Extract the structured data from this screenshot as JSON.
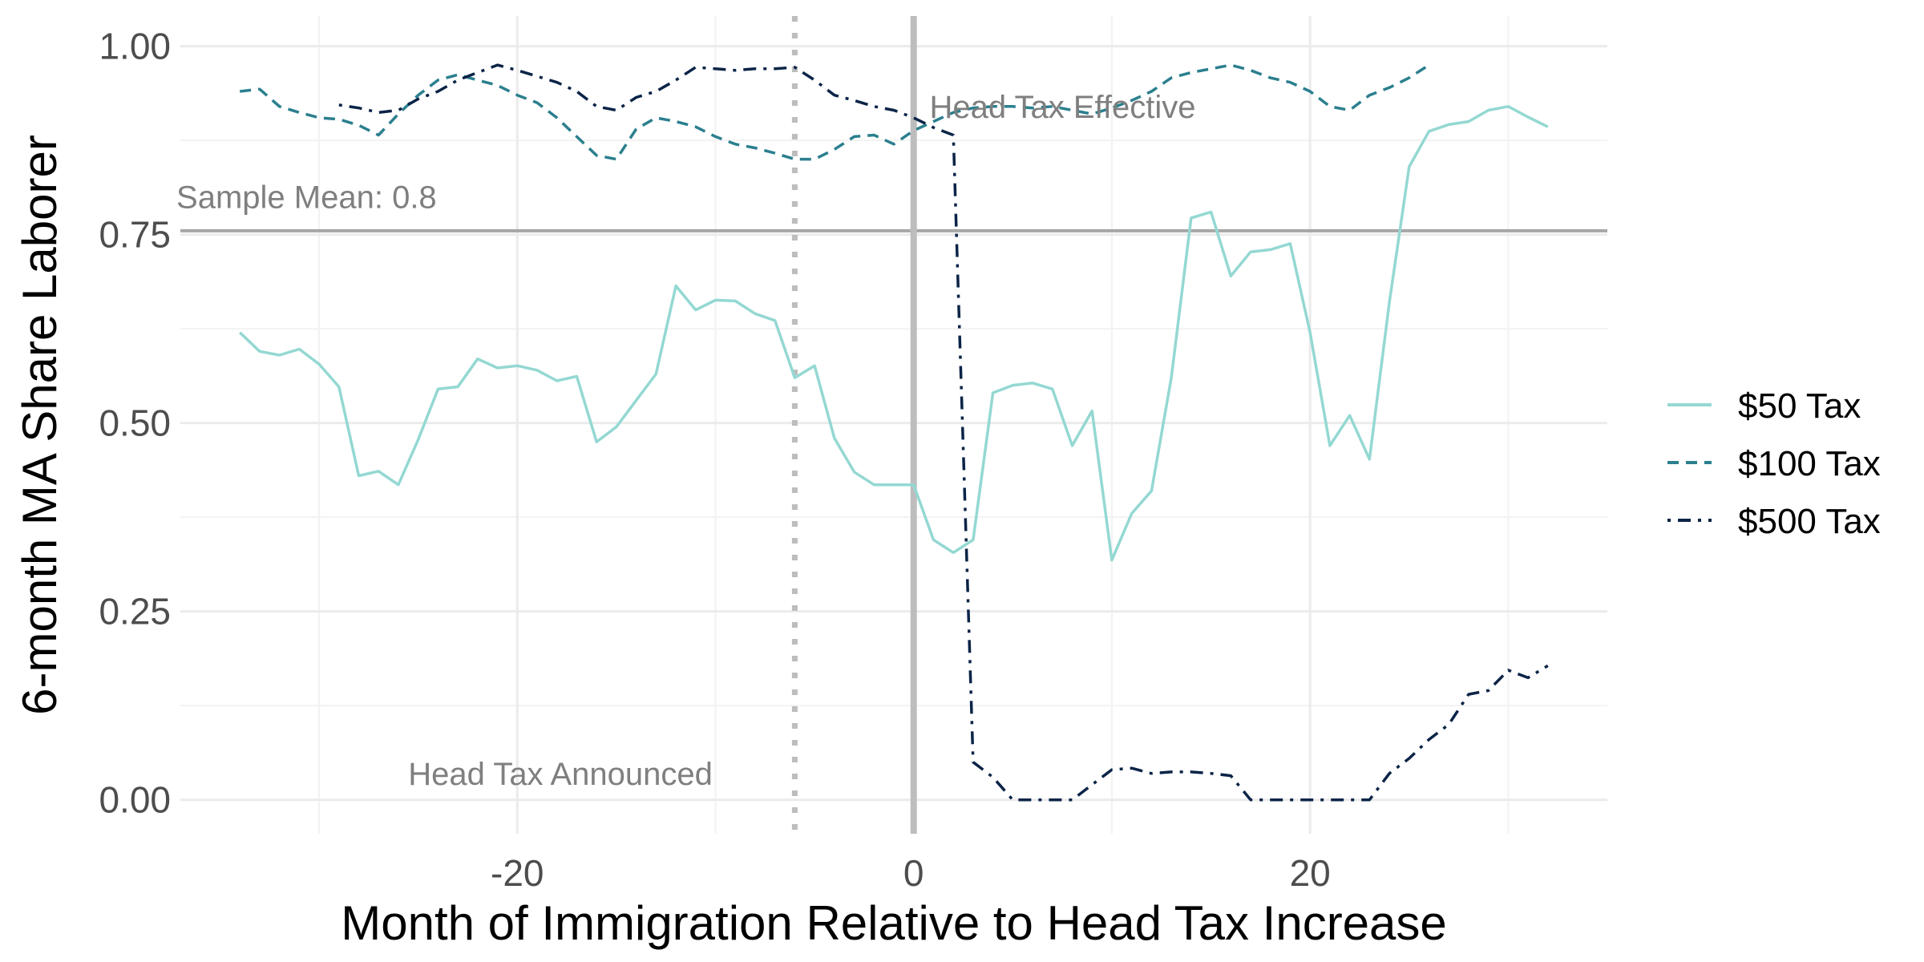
{
  "chart_data": {
    "type": "line",
    "title": "",
    "xlabel": "Month of Immigration Relative to Head Tax Increase",
    "ylabel": "6-month MA Share Laborer",
    "xlim": [
      -37,
      35
    ],
    "ylim": [
      -0.045,
      1.04
    ],
    "x_ticks": [
      -20,
      0,
      20
    ],
    "x_tick_labels": [
      "-20",
      "0",
      "20"
    ],
    "y_ticks": [
      0,
      0.25,
      0.5,
      0.75,
      1.0
    ],
    "y_tick_labels": [
      "0.00",
      "0.25",
      "0.50",
      "0.75",
      "1.00"
    ],
    "grid": true,
    "legend_position": "right",
    "reference_lines": {
      "vertical_solid": {
        "x": 0,
        "color": "#bdbdbd"
      },
      "vertical_dotted": {
        "x": -6,
        "color": "#bdbdbd"
      },
      "horizontal": {
        "y": 0.755,
        "color": "#a6a6a6"
      }
    },
    "annotations": {
      "effective": {
        "text": "Head Tax Effective",
        "x": 0.8,
        "y": 0.92
      },
      "mean": {
        "text": "Sample Mean: 0.8",
        "x": -37.2,
        "y": 0.8
      },
      "announced": {
        "text": "Head Tax Announced",
        "x": -25.5,
        "y": 0.035
      }
    },
    "series": [
      {
        "name": "$50 Tax",
        "color": "#94d8d2",
        "dash": "solid",
        "x": [
          -34,
          -33,
          -32,
          -31,
          -30,
          -29,
          -28,
          -27,
          -26,
          -25,
          -24,
          -23,
          -22,
          -21,
          -20,
          -19,
          -18,
          -17,
          -16,
          -15,
          -14,
          -13,
          -12,
          -11,
          -10,
          -9,
          -8,
          -7,
          -6,
          -5,
          -4,
          -3,
          -2,
          -1,
          0,
          1,
          2,
          3,
          4,
          5,
          6,
          7,
          8,
          9,
          10,
          11,
          12,
          13,
          14,
          15,
          16,
          17,
          18,
          19,
          20,
          21,
          22,
          23,
          24,
          25,
          26,
          27,
          28,
          29,
          30,
          31,
          32
        ],
        "values": [
          0.62,
          0.595,
          0.59,
          0.598,
          0.578,
          0.548,
          0.43,
          0.436,
          0.418,
          0.478,
          0.545,
          0.548,
          0.585,
          0.573,
          0.576,
          0.57,
          0.556,
          0.562,
          0.475,
          0.495,
          0.53,
          0.565,
          0.682,
          0.65,
          0.663,
          0.662,
          0.645,
          0.636,
          0.56,
          0.576,
          0.48,
          0.435,
          0.418,
          0.418,
          0.418,
          0.345,
          0.328,
          0.345,
          0.54,
          0.55,
          0.553,
          0.545,
          0.47,
          0.516,
          0.318,
          0.38,
          0.41,
          0.56,
          0.772,
          0.78,
          0.695,
          0.727,
          0.73,
          0.738,
          0.62,
          0.47,
          0.51,
          0.452,
          0.66,
          0.84,
          0.887,
          0.896,
          0.9,
          0.915,
          0.92,
          0.906,
          0.893
        ]
      },
      {
        "name": "$100 Tax",
        "color": "#2b7f8e",
        "dash": "dashed",
        "x": [
          -34,
          -33,
          -32,
          -31,
          -30,
          -29,
          -28,
          -27,
          -26,
          -25,
          -24,
          -23,
          -22,
          -21,
          -20,
          -19,
          -18,
          -17,
          -16,
          -15,
          -14,
          -13,
          -12,
          -11,
          -10,
          -9,
          -8,
          -7,
          -6,
          -5,
          -4,
          -3,
          -2,
          -1,
          0,
          1,
          2,
          3,
          4,
          5,
          6,
          7,
          8,
          9,
          10,
          11,
          12,
          13,
          14,
          15,
          16,
          17,
          18,
          19,
          20,
          21,
          22,
          23,
          24,
          25,
          26
        ],
        "values": [
          0.94,
          0.943,
          0.92,
          0.912,
          0.905,
          0.903,
          0.895,
          0.882,
          0.91,
          0.935,
          0.955,
          0.962,
          0.955,
          0.948,
          0.935,
          0.925,
          0.905,
          0.88,
          0.855,
          0.85,
          0.89,
          0.905,
          0.9,
          0.893,
          0.88,
          0.87,
          0.865,
          0.858,
          0.85,
          0.85,
          0.863,
          0.88,
          0.882,
          0.87,
          0.888,
          0.9,
          0.912,
          0.918,
          0.92,
          0.92,
          0.918,
          0.92,
          0.915,
          0.91,
          0.918,
          0.928,
          0.94,
          0.958,
          0.965,
          0.97,
          0.975,
          0.968,
          0.958,
          0.952,
          0.94,
          0.92,
          0.915,
          0.935,
          0.945,
          0.958,
          0.975
        ]
      },
      {
        "name": "$500 Tax",
        "color": "#0b2447",
        "dash": "dashdot",
        "x": [
          -29,
          -28,
          -27,
          -26,
          -25,
          -24,
          -23,
          -22,
          -21,
          -20,
          -19,
          -18,
          -17,
          -16,
          -15,
          -14,
          -13,
          -12,
          -11,
          -10,
          -9,
          -8,
          -7,
          -6,
          -5,
          -4,
          -3,
          -2,
          -1,
          0,
          1,
          2,
          3,
          4,
          5,
          6,
          7,
          8,
          9,
          10,
          11,
          12,
          13,
          14,
          15,
          16,
          17,
          18,
          19,
          20,
          21,
          22,
          23,
          24,
          25,
          26,
          27,
          28,
          29,
          30,
          31,
          32
        ],
        "values": [
          0.922,
          0.918,
          0.912,
          0.915,
          0.93,
          0.94,
          0.955,
          0.965,
          0.975,
          0.968,
          0.96,
          0.952,
          0.94,
          0.92,
          0.915,
          0.932,
          0.94,
          0.955,
          0.972,
          0.97,
          0.968,
          0.97,
          0.97,
          0.972,
          0.955,
          0.935,
          0.928,
          0.92,
          0.915,
          0.905,
          0.892,
          0.882,
          0.05,
          0.03,
          0.0,
          0.0,
          0.0,
          0.0,
          0.02,
          0.04,
          0.042,
          0.035,
          0.037,
          0.037,
          0.035,
          0.032,
          0.0,
          0.0,
          0.0,
          0.0,
          0.0,
          0.0,
          0.0,
          0.035,
          0.055,
          0.08,
          0.1,
          0.14,
          0.145,
          0.172,
          0.162,
          0.178
        ]
      }
    ]
  }
}
